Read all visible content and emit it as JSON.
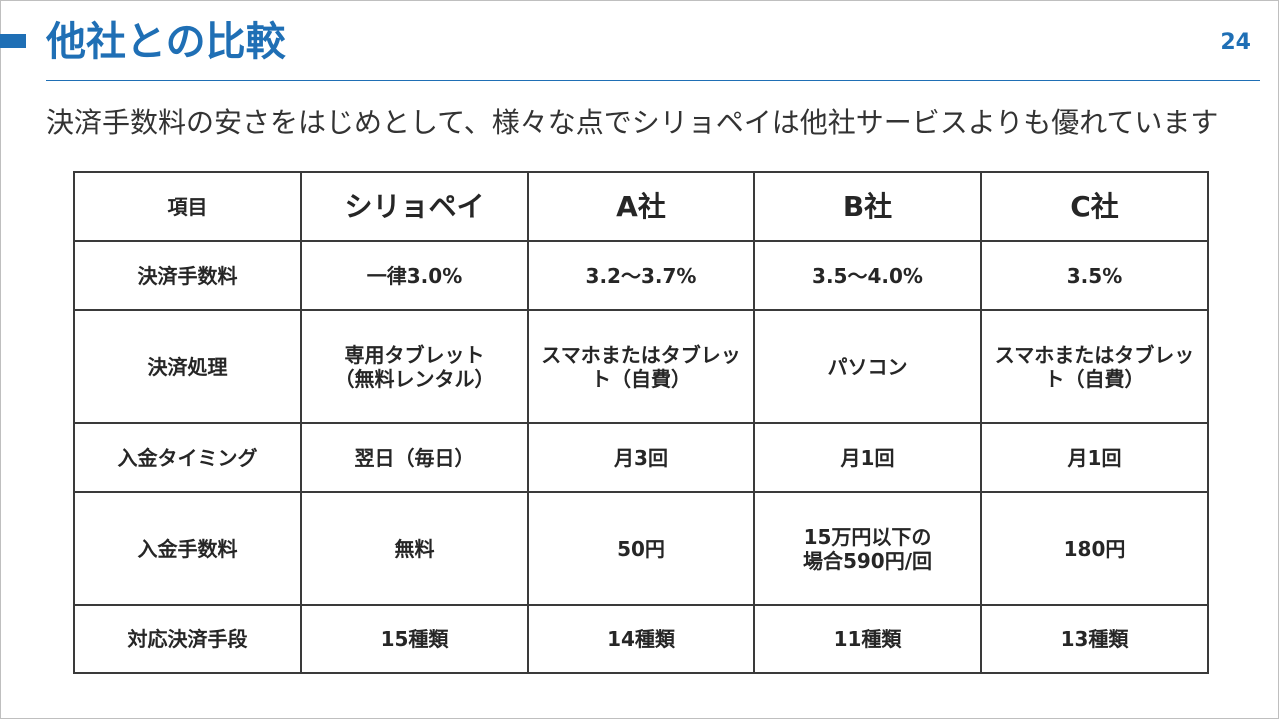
{
  "slide": {
    "title": "他社との比較",
    "page_number": "24",
    "subtitle": "決済手数料の安さをはじめとして、様々な点でシリョペイは他社サービスよりも優れています"
  },
  "table": {
    "headers": [
      "項目",
      "シリョペイ",
      "A社",
      "B社",
      "C社"
    ],
    "rows": [
      {
        "label": "決済手数料",
        "cells": [
          "一律3.0%",
          "3.2～3.7%",
          "3.5～4.0%",
          "3.5%"
        ]
      },
      {
        "label": "決済処理",
        "cells": [
          "専用タブレット\n（無料レンタル）",
          "スマホまたはタブレッ\nト（自費）",
          "パソコン",
          "スマホまたはタブレッ\nト（自費）"
        ]
      },
      {
        "label": "入金タイミング",
        "cells": [
          "翌日（毎日）",
          "月3回",
          "月1回",
          "月1回"
        ]
      },
      {
        "label": "入金手数料",
        "cells": [
          "無料",
          "50円",
          "15万円以下の\n場合590円/回",
          "180円"
        ]
      },
      {
        "label": "対応決済手段",
        "cells": [
          "15種類",
          "14種類",
          "11種類",
          "13種類"
        ]
      }
    ]
  },
  "colors": {
    "accent": "#1f6fb5",
    "border": "#3a3a3a",
    "text": "#262626"
  }
}
